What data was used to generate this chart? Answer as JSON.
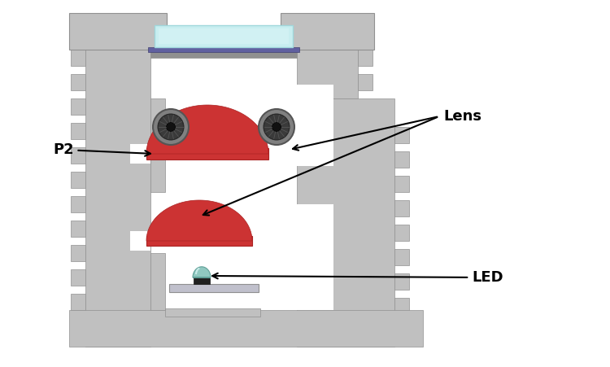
{
  "bg_color": "#ffffff",
  "gray": "#c0c0c0",
  "gray_dark": "#909090",
  "gray_mid": "#b0b0b0",
  "gray_light": "#d5d5d5",
  "gray_very_light": "#e8e8e8",
  "red": "#cc3333",
  "red_dark": "#aa2222",
  "cyan_glass": "#c8eef0",
  "cyan_glass_dark": "#a0d8dc",
  "purple_bar": "#6060a0",
  "bolt_outer": "#888888",
  "bolt_inner": "#444444",
  "bolt_center": "#111111",
  "led_color": "#90c8c0",
  "led_base": "#303030",
  "figsize": [
    7.5,
    4.51
  ],
  "dpi": 100,
  "xlim": [
    0,
    750
  ],
  "ylim": [
    0,
    451
  ]
}
